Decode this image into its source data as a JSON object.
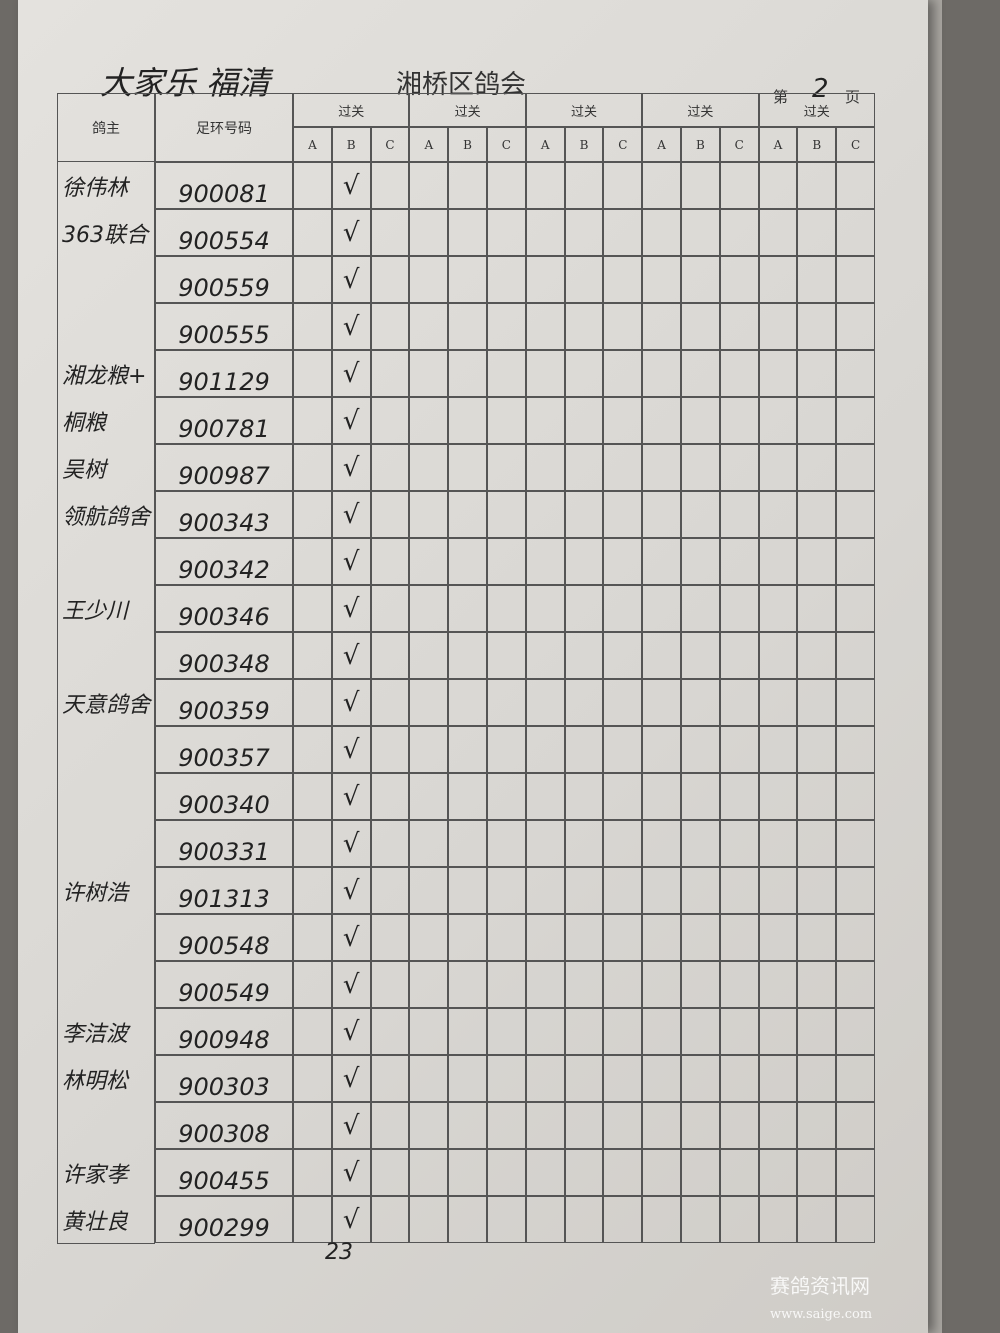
{
  "header": {
    "handwritten_note": "大家乐  福清",
    "title": "湘桥区鸽会",
    "page_prefix": "第",
    "page_number": "2",
    "page_suffix": "页"
  },
  "table": {
    "columns": [
      "鸽主",
      "足环号码"
    ],
    "groups": [
      "过关",
      "过关",
      "过关",
      "过关",
      "过关"
    ],
    "subcolumns": [
      "A",
      "B",
      "C"
    ],
    "rows": [
      {
        "owner": "徐伟林",
        "ring": "900081",
        "check": "√"
      },
      {
        "owner": "363联合",
        "ring": "900554",
        "check": "√"
      },
      {
        "owner": null,
        "ring": "900559",
        "check": "√"
      },
      {
        "owner": null,
        "ring": "900555",
        "check": "√"
      },
      {
        "owner": "湘龙粮+",
        "ring": "901129",
        "check": "√"
      },
      {
        "owner": "桐粮",
        "ring": "900781",
        "check": "√"
      },
      {
        "owner": "吴树",
        "ring": "900987",
        "check": "√"
      },
      {
        "owner": "领航鸽舍",
        "ring": "900343",
        "check": "√"
      },
      {
        "owner": null,
        "ring": "900342",
        "check": "√"
      },
      {
        "owner": "王少川",
        "ring": "900346",
        "check": "√"
      },
      {
        "owner": null,
        "ring": "900348",
        "check": "√"
      },
      {
        "owner": "天意鸽舍",
        "ring": "900359",
        "check": "√"
      },
      {
        "owner": null,
        "ring": "900357",
        "check": "√"
      },
      {
        "owner": null,
        "ring": "900340",
        "check": "√"
      },
      {
        "owner": null,
        "ring": "900331",
        "check": "√"
      },
      {
        "owner": "许树浩",
        "ring": "901313",
        "check": "√"
      },
      {
        "owner": null,
        "ring": "900548",
        "check": "√"
      },
      {
        "owner": null,
        "ring": "900549",
        "check": "√"
      },
      {
        "owner": "李洁波",
        "ring": "900948",
        "check": "√"
      },
      {
        "owner": "林明松",
        "ring": "900303",
        "check": "√"
      },
      {
        "owner": null,
        "ring": "900308",
        "check": "√"
      },
      {
        "owner": "许家孝",
        "ring": "900455",
        "check": "√"
      },
      {
        "owner": "黄壮良",
        "ring": "900299",
        "check": "√"
      }
    ]
  },
  "footer": {
    "total": "23"
  },
  "watermark": {
    "name": "赛鸽资讯网",
    "url": "www.saige.com"
  }
}
